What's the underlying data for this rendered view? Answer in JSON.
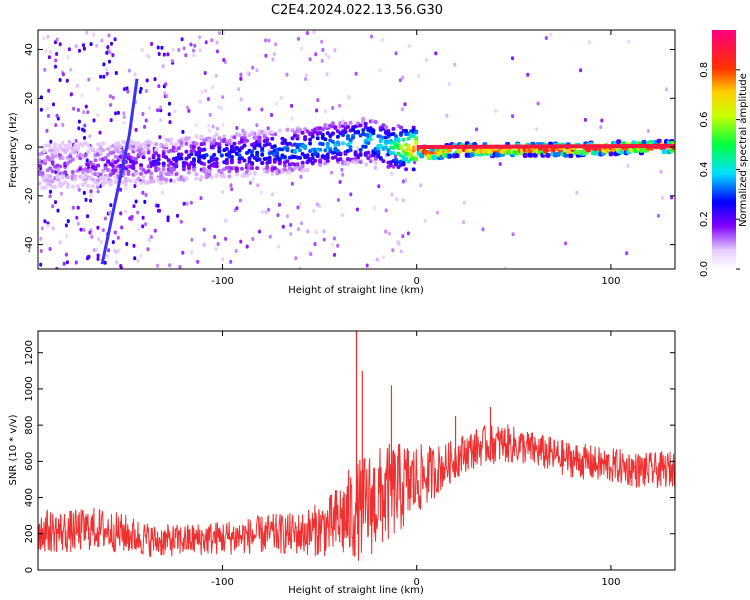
{
  "figure": {
    "title": "C2E4.2024.022.13.56.G30"
  },
  "chart_data": [
    {
      "type": "heatmap",
      "xlabel": "Height of straight line (km)",
      "ylabel": "Frequency (Hz)",
      "xlim": [
        -195,
        133
      ],
      "ylim": [
        -50,
        48
      ],
      "xticks": [
        -100,
        0,
        100
      ],
      "yticks": [
        -40,
        -20,
        0,
        20,
        40
      ],
      "grid": false,
      "colorbar": {
        "label": "Normalized spectral amplitude",
        "range": [
          0,
          0.96
        ],
        "ticks": [
          0.0,
          0.2,
          0.4,
          0.6,
          0.8
        ],
        "colormap": "white-purple-blue-cyan-green-yellow-red-magenta"
      },
      "ridge": [
        {
          "x": -190,
          "y": -7,
          "amp": 0.15
        },
        {
          "x": -160,
          "y": -6,
          "amp": 0.18
        },
        {
          "x": -130,
          "y": -5,
          "amp": 0.22
        },
        {
          "x": -110,
          "y": -3,
          "amp": 0.28
        },
        {
          "x": -90,
          "y": -2,
          "amp": 0.3
        },
        {
          "x": -70,
          "y": -1,
          "amp": 0.35
        },
        {
          "x": -50,
          "y": 1,
          "amp": 0.38
        },
        {
          "x": -35,
          "y": 3,
          "amp": 0.4
        },
        {
          "x": -25,
          "y": 4,
          "amp": 0.42
        },
        {
          "x": -15,
          "y": 1,
          "amp": 0.45
        },
        {
          "x": 0,
          "y": 0,
          "amp": 0.9
        },
        {
          "x": 5,
          "y": -2,
          "amp": 0.88
        },
        {
          "x": 20,
          "y": 0,
          "amp": 0.92
        },
        {
          "x": 50,
          "y": 0,
          "amp": 0.93
        },
        {
          "x": 80,
          "y": 0,
          "amp": 0.94
        },
        {
          "x": 110,
          "y": 1,
          "amp": 0.93
        },
        {
          "x": 133,
          "y": 1,
          "amp": 0.92
        }
      ],
      "streak": [
        {
          "x": -162,
          "y": -48
        },
        {
          "x": -148,
          "y": 5
        },
        {
          "x": -144,
          "y": 28
        }
      ]
    },
    {
      "type": "line",
      "xlabel": "Height of straight line (km)",
      "ylabel": "SNR (10 * v/v)",
      "xlim": [
        -195,
        133
      ],
      "ylim": [
        0,
        1320
      ],
      "xticks": [
        -100,
        0,
        100
      ],
      "yticks": [
        0,
        200,
        400,
        600,
        800,
        1000,
        1200
      ],
      "grid": false,
      "series": [
        {
          "color": "#f03030",
          "x": [
            -195,
            -180,
            -165,
            -150,
            -135,
            -120,
            -105,
            -90,
            -75,
            -60,
            -45,
            -35,
            -25,
            -15,
            -5,
            5,
            15,
            25,
            35,
            45,
            55,
            65,
            75,
            85,
            95,
            105,
            115,
            125,
            133
          ],
          "mean": [
            220,
            210,
            230,
            200,
            160,
            165,
            175,
            185,
            200,
            200,
            240,
            300,
            360,
            420,
            470,
            520,
            580,
            650,
            690,
            700,
            680,
            650,
            620,
            600,
            580,
            570,
            550,
            550,
            560
          ],
          "spread": [
            120,
            120,
            120,
            110,
            90,
            90,
            95,
            100,
            110,
            120,
            170,
            260,
            300,
            280,
            240,
            170,
            120,
            110,
            110,
            110,
            100,
            100,
            100,
            100,
            100,
            100,
            100,
            100,
            100
          ],
          "peaks": [
            {
              "x": -31,
              "y": 1320
            },
            {
              "x": -28,
              "y": 1100
            },
            {
              "x": -13,
              "y": 1020
            },
            {
              "x": 20,
              "y": 850
            },
            {
              "x": 38,
              "y": 900
            }
          ]
        }
      ]
    }
  ]
}
